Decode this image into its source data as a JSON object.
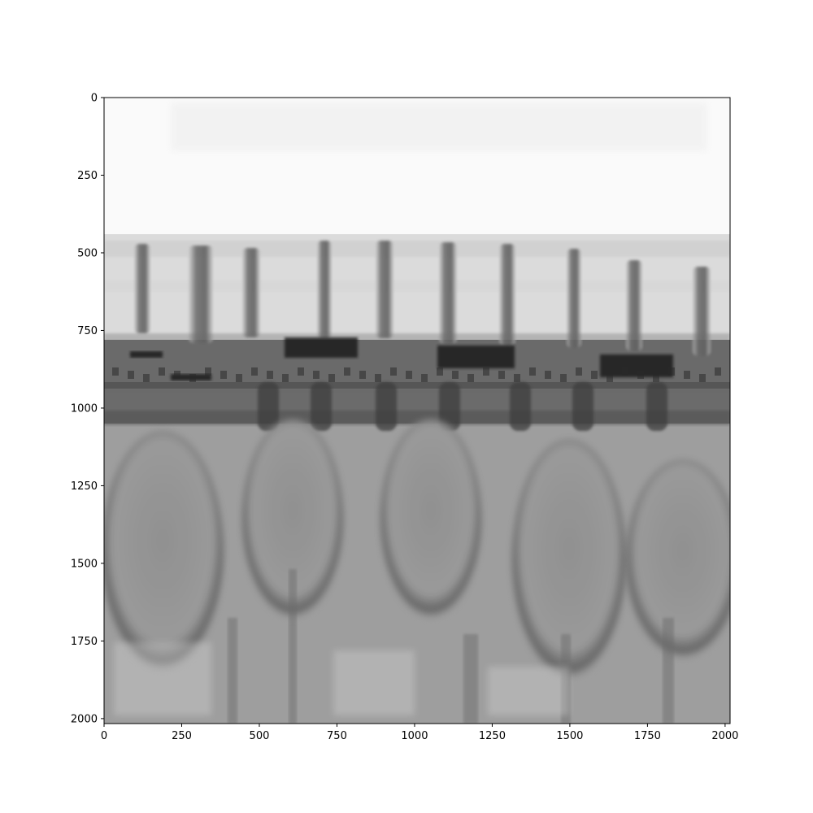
{
  "chart_data": {
    "type": "heatmap",
    "title": "",
    "xlabel": "",
    "ylabel": "",
    "colormap": "gray",
    "image_extent": {
      "x": [
        0,
        2016
      ],
      "y": [
        0,
        2016
      ]
    },
    "y_inverted": true,
    "xlim": [
      0,
      2016
    ],
    "ylim": [
      2016,
      0
    ],
    "x_ticks": [
      0,
      250,
      500,
      750,
      1000,
      1250,
      1500,
      1750,
      2000
    ],
    "y_ticks": [
      0,
      250,
      500,
      750,
      1000,
      1250,
      1500,
      1750,
      2000
    ],
    "content_bands": [
      {
        "y_start": 0,
        "y_end": 440,
        "intensity": 0.98
      },
      {
        "y_start": 440,
        "y_end": 780,
        "intensity": 0.86
      },
      {
        "y_start": 780,
        "y_end": 1050,
        "intensity": 0.42
      },
      {
        "y_start": 1050,
        "y_end": 2016,
        "intensity": 0.62
      }
    ],
    "grid": false,
    "legend": "none"
  }
}
